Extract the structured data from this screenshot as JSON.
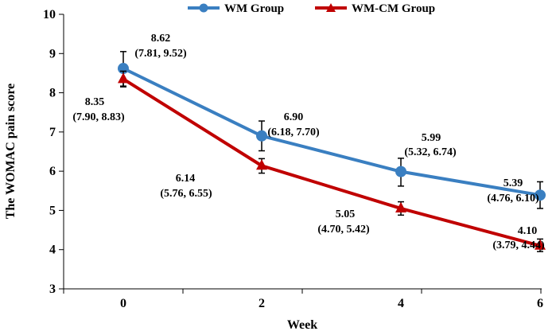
{
  "chart_data": {
    "type": "line",
    "xlabel": "Week",
    "ylabel": "The WOMAC pain score",
    "categories": [
      "0",
      "2",
      "4",
      "6"
    ],
    "x": [
      0,
      2,
      4,
      6
    ],
    "yticks": [
      "3",
      "4",
      "5",
      "6",
      "7",
      "8",
      "9",
      "10"
    ],
    "ylim": [
      3,
      10
    ],
    "grid": false,
    "legend_position": "top",
    "series": [
      {
        "name": "WM Group",
        "color": "#3a7fc1",
        "marker": "circle",
        "values": [
          8.62,
          6.9,
          5.99,
          5.39
        ],
        "ci_low": [
          7.81,
          6.18,
          5.32,
          4.76
        ],
        "ci_high": [
          9.52,
          7.7,
          6.74,
          6.1
        ],
        "err_low": [
          8.17,
          6.52,
          5.62,
          5.05
        ],
        "err_high": [
          9.05,
          7.28,
          6.33,
          5.73
        ],
        "labels": [
          "8.62",
          "6.90",
          "5.99",
          "5.39"
        ],
        "ci_labels": [
          "(7.81, 9.52)",
          "(6.18, 7.70)",
          "(5.32, 6.74)",
          "(4.76, 6.10)"
        ]
      },
      {
        "name": "WM-CM Group",
        "color": "#c00000",
        "marker": "triangle",
        "values": [
          8.35,
          6.14,
          5.05,
          4.1
        ],
        "ci_low": [
          7.9,
          5.76,
          4.7,
          3.79
        ],
        "ci_high": [
          8.83,
          6.55,
          5.42,
          4.44
        ],
        "err_low": [
          8.15,
          5.95,
          4.88,
          3.95
        ],
        "err_high": [
          8.55,
          6.32,
          5.22,
          4.27
        ],
        "labels": [
          "8.35",
          "6.14",
          "5.05",
          "4.10"
        ],
        "ci_labels": [
          "(7.90, 8.83)",
          "(5.76, 6.55)",
          "(4.70, 5.42)",
          "(3.79, 4.44)"
        ]
      }
    ]
  }
}
